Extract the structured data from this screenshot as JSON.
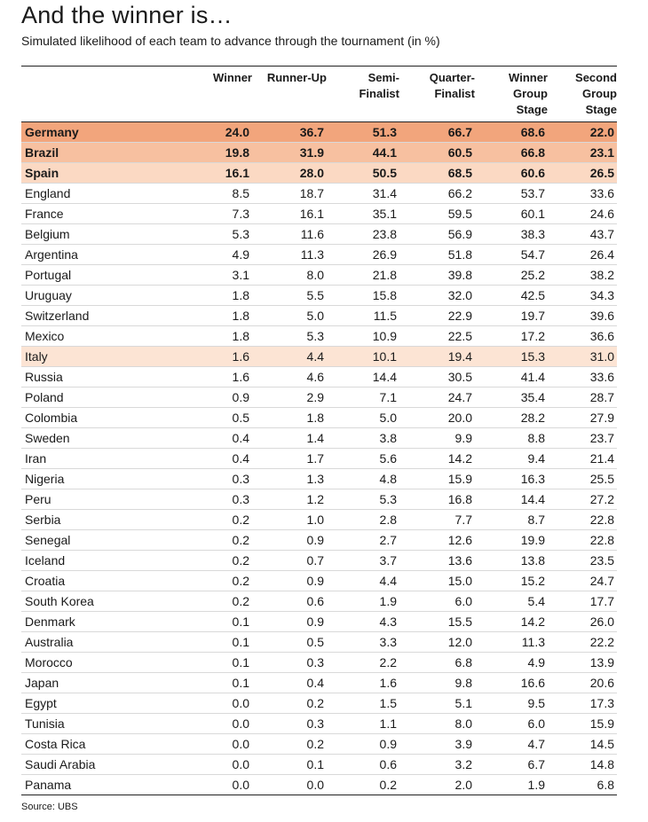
{
  "chart_data": {
    "type": "table",
    "title": "And the winner is…",
    "subtitle": "Simulated likelihood of each team to advance through the tournament (in %)",
    "source": "Source: UBS",
    "columns": [
      "Winner",
      "Runner-Up",
      "Semi-\nFinalist",
      "Quarter-\nFinalist",
      "Winner\nGroup\nStage",
      "Second\nGroup\nStage"
    ],
    "rows": [
      {
        "team": "Germany",
        "values": [
          "24.0",
          "36.7",
          "51.3",
          "66.7",
          "68.6",
          "22.0"
        ],
        "highlight": "r1"
      },
      {
        "team": "Brazil",
        "values": [
          "19.8",
          "31.9",
          "44.1",
          "60.5",
          "66.8",
          "23.1"
        ],
        "highlight": "r2"
      },
      {
        "team": "Spain",
        "values": [
          "16.1",
          "28.0",
          "50.5",
          "68.5",
          "60.6",
          "26.5"
        ],
        "highlight": "r3"
      },
      {
        "team": "England",
        "values": [
          "8.5",
          "18.7",
          "31.4",
          "66.2",
          "53.7",
          "33.6"
        ],
        "highlight": ""
      },
      {
        "team": "France",
        "values": [
          "7.3",
          "16.1",
          "35.1",
          "59.5",
          "60.1",
          "24.6"
        ],
        "highlight": ""
      },
      {
        "team": "Belgium",
        "values": [
          "5.3",
          "11.6",
          "23.8",
          "56.9",
          "38.3",
          "43.7"
        ],
        "highlight": ""
      },
      {
        "team": "Argentina",
        "values": [
          "4.9",
          "11.3",
          "26.9",
          "51.8",
          "54.7",
          "26.4"
        ],
        "highlight": ""
      },
      {
        "team": "Portugal",
        "values": [
          "3.1",
          "8.0",
          "21.8",
          "39.8",
          "25.2",
          "38.2"
        ],
        "highlight": ""
      },
      {
        "team": "Uruguay",
        "values": [
          "1.8",
          "5.5",
          "15.8",
          "32.0",
          "42.5",
          "34.3"
        ],
        "highlight": ""
      },
      {
        "team": "Switzerland",
        "values": [
          "1.8",
          "5.0",
          "11.5",
          "22.9",
          "19.7",
          "39.6"
        ],
        "highlight": ""
      },
      {
        "team": "Mexico",
        "values": [
          "1.8",
          "5.3",
          "10.9",
          "22.5",
          "17.2",
          "36.6"
        ],
        "highlight": ""
      },
      {
        "team": "Italy",
        "values": [
          "1.6",
          "4.4",
          "10.1",
          "19.4",
          "15.3",
          "31.0"
        ],
        "highlight": "hl"
      },
      {
        "team": "Russia",
        "values": [
          "1.6",
          "4.6",
          "14.4",
          "30.5",
          "41.4",
          "33.6"
        ],
        "highlight": ""
      },
      {
        "team": "Poland",
        "values": [
          "0.9",
          "2.9",
          "7.1",
          "24.7",
          "35.4",
          "28.7"
        ],
        "highlight": ""
      },
      {
        "team": "Colombia",
        "values": [
          "0.5",
          "1.8",
          "5.0",
          "20.0",
          "28.2",
          "27.9"
        ],
        "highlight": ""
      },
      {
        "team": "Sweden",
        "values": [
          "0.4",
          "1.4",
          "3.8",
          "9.9",
          "8.8",
          "23.7"
        ],
        "highlight": ""
      },
      {
        "team": "Iran",
        "values": [
          "0.4",
          "1.7",
          "5.6",
          "14.2",
          "9.4",
          "21.4"
        ],
        "highlight": ""
      },
      {
        "team": "Nigeria",
        "values": [
          "0.3",
          "1.3",
          "4.8",
          "15.9",
          "16.3",
          "25.5"
        ],
        "highlight": ""
      },
      {
        "team": "Peru",
        "values": [
          "0.3",
          "1.2",
          "5.3",
          "16.8",
          "14.4",
          "27.2"
        ],
        "highlight": ""
      },
      {
        "team": "Serbia",
        "values": [
          "0.2",
          "1.0",
          "2.8",
          "7.7",
          "8.7",
          "22.8"
        ],
        "highlight": ""
      },
      {
        "team": "Senegal",
        "values": [
          "0.2",
          "0.9",
          "2.7",
          "12.6",
          "19.9",
          "22.8"
        ],
        "highlight": ""
      },
      {
        "team": "Iceland",
        "values": [
          "0.2",
          "0.7",
          "3.7",
          "13.6",
          "13.8",
          "23.5"
        ],
        "highlight": ""
      },
      {
        "team": "Croatia",
        "values": [
          "0.2",
          "0.9",
          "4.4",
          "15.0",
          "15.2",
          "24.7"
        ],
        "highlight": ""
      },
      {
        "team": "South Korea",
        "values": [
          "0.2",
          "0.6",
          "1.9",
          "6.0",
          "5.4",
          "17.7"
        ],
        "highlight": ""
      },
      {
        "team": "Denmark",
        "values": [
          "0.1",
          "0.9",
          "4.3",
          "15.5",
          "14.2",
          "26.0"
        ],
        "highlight": ""
      },
      {
        "team": "Australia",
        "values": [
          "0.1",
          "0.5",
          "3.3",
          "12.0",
          "11.3",
          "22.2"
        ],
        "highlight": ""
      },
      {
        "team": "Morocco",
        "values": [
          "0.1",
          "0.3",
          "2.2",
          "6.8",
          "4.9",
          "13.9"
        ],
        "highlight": ""
      },
      {
        "team": "Japan",
        "values": [
          "0.1",
          "0.4",
          "1.6",
          "9.8",
          "16.6",
          "20.6"
        ],
        "highlight": ""
      },
      {
        "team": "Egypt",
        "values": [
          "0.0",
          "0.2",
          "1.5",
          "5.1",
          "9.5",
          "17.3"
        ],
        "highlight": ""
      },
      {
        "team": "Tunisia",
        "values": [
          "0.0",
          "0.3",
          "1.1",
          "8.0",
          "6.0",
          "15.9"
        ],
        "highlight": ""
      },
      {
        "team": "Costa Rica",
        "values": [
          "0.0",
          "0.2",
          "0.9",
          "3.9",
          "4.7",
          "14.5"
        ],
        "highlight": ""
      },
      {
        "team": "Saudi Arabia",
        "values": [
          "0.0",
          "0.1",
          "0.6",
          "3.2",
          "6.7",
          "14.8"
        ],
        "highlight": ""
      },
      {
        "team": "Panama",
        "values": [
          "0.0",
          "0.0",
          "0.2",
          "2.0",
          "1.9",
          "6.8"
        ],
        "highlight": ""
      }
    ]
  }
}
